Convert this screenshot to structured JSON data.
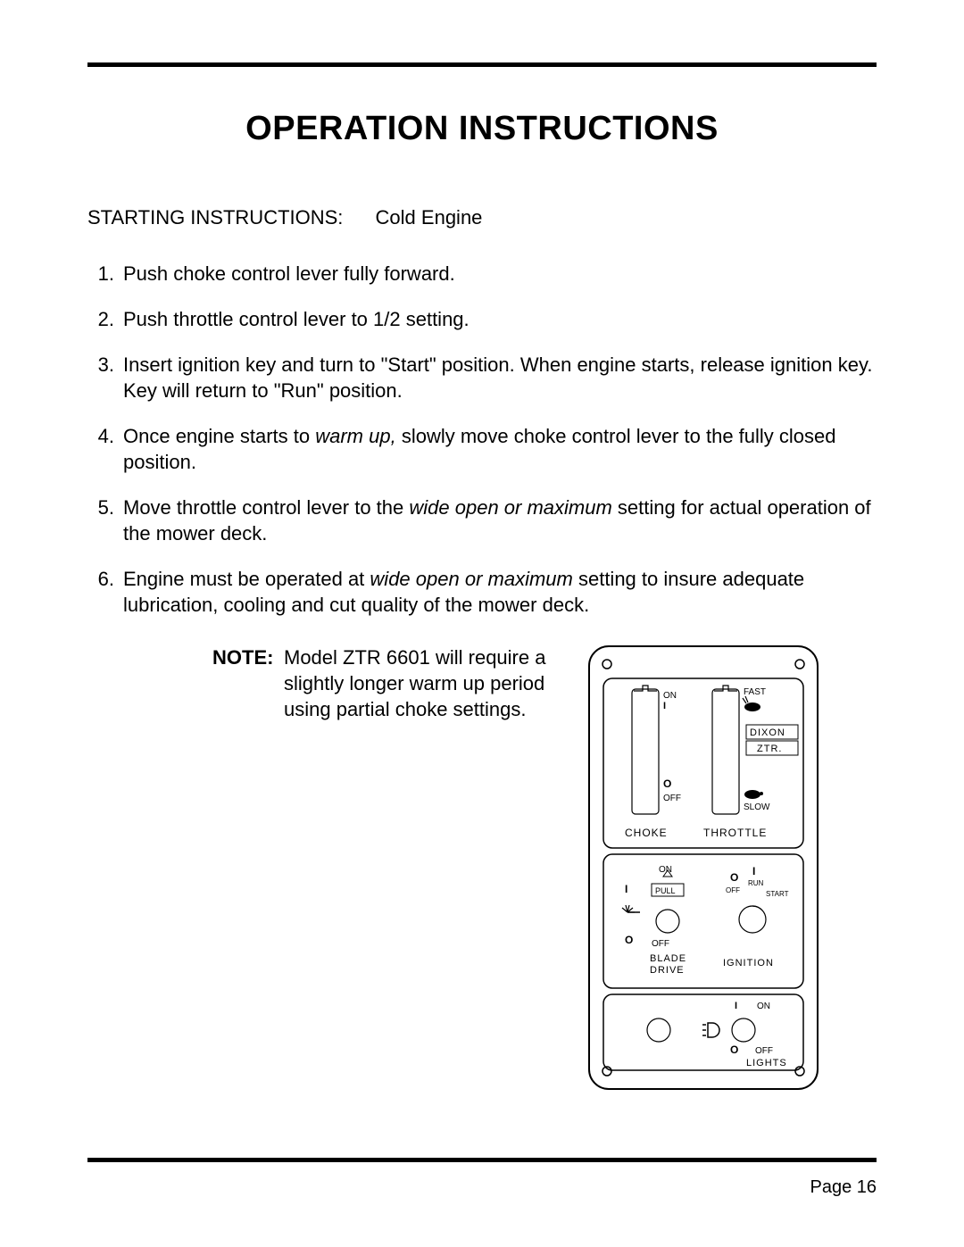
{
  "title": "OPERATION INSTRUCTIONS",
  "subhead": {
    "label": "STARTING INSTRUCTIONS:",
    "value": "Cold Engine"
  },
  "steps": [
    {
      "num": "1.",
      "html": "Push choke control lever fully forward."
    },
    {
      "num": "2.",
      "html": "Push throttle control lever to 1/2 setting."
    },
    {
      "num": "3.",
      "html": "Insert ignition key and turn to \"Start\" position. When engine starts, release ignition key. Key will return to \"Run\" position."
    },
    {
      "num": "4.",
      "html": "Once engine starts to <em>warm up,</em> slowly move choke control lever to the fully closed position."
    },
    {
      "num": "5.",
      "html": "Move throttle control lever to the <em>wide open or maximum</em> setting for actual operation of the mower deck."
    },
    {
      "num": "6.",
      "html": "Engine must be operated at <em>wide open or maximum</em> setting to insure adequate lubrication, cooling and cut quality of the mower deck."
    }
  ],
  "note": {
    "label": "NOTE:",
    "text": "Model ZTR 6601 will require a slightly longer warm up period using partial choke settings."
  },
  "page_number": "Page 16",
  "panel": {
    "brand1": "DIXON",
    "brand2": "ZTR.",
    "choke_label": "CHOKE",
    "throttle_label": "THROTTLE",
    "on": "ON",
    "off": "OFF",
    "fast": "FAST",
    "slow": "SLOW",
    "blade_on": "ON",
    "blade_pull": "PULL",
    "blade_off": "OFF",
    "blade_drive1": "BLADE",
    "blade_drive2": "DRIVE",
    "ign_run": "RUN",
    "ign_off": "OFF",
    "ign_start": "START",
    "ignition": "IGNITION",
    "lights_on": "ON",
    "lights_off": "OFF",
    "lights": "LIGHTS",
    "i_mark": "I",
    "o_mark": "O"
  }
}
